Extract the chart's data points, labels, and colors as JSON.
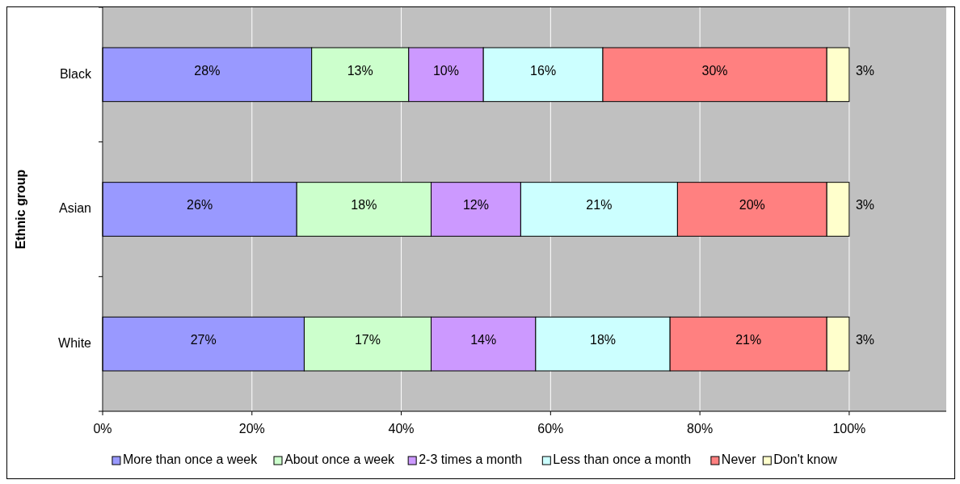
{
  "chart_data": {
    "type": "bar",
    "orientation": "horizontal",
    "stacked": true,
    "ylabel": "Ethnic group",
    "categories": [
      "Black",
      "Asian",
      "White"
    ],
    "series": [
      {
        "name": "More than once a week",
        "color": "#9999ff",
        "values": [
          28,
          26,
          27
        ],
        "value_labels": [
          "28%",
          "26%",
          "27%"
        ]
      },
      {
        "name": "About once a week",
        "color": "#ccffcc",
        "values": [
          13,
          18,
          17
        ],
        "value_labels": [
          "13%",
          "18%",
          "17%"
        ]
      },
      {
        "name": "2-3 times a month",
        "color": "#cc99ff",
        "values": [
          10,
          12,
          14
        ],
        "value_labels": [
          "10%",
          "12%",
          "14%"
        ]
      },
      {
        "name": "Less than once a month",
        "color": "#ccffff",
        "values": [
          16,
          21,
          18
        ],
        "value_labels": [
          "16%",
          "21%",
          "18%"
        ]
      },
      {
        "name": "Never",
        "color": "#ff8080",
        "values": [
          30,
          20,
          21
        ],
        "value_labels": [
          "30%",
          "20%",
          "21%"
        ]
      },
      {
        "name": "Don't know",
        "color": "#ffffcc",
        "values": [
          3,
          3,
          3
        ],
        "value_labels": [
          "3%",
          "3%",
          "3%"
        ]
      }
    ],
    "xlim": [
      0,
      113
    ],
    "xticks": [
      {
        "value": 0,
        "label": "0%"
      },
      {
        "value": 20,
        "label": "20%"
      },
      {
        "value": 40,
        "label": "40%"
      },
      {
        "value": 60,
        "label": "60%"
      },
      {
        "value": 80,
        "label": "80%"
      },
      {
        "value": 100,
        "label": "100%"
      }
    ],
    "grid": "x",
    "legend": "bottom"
  }
}
